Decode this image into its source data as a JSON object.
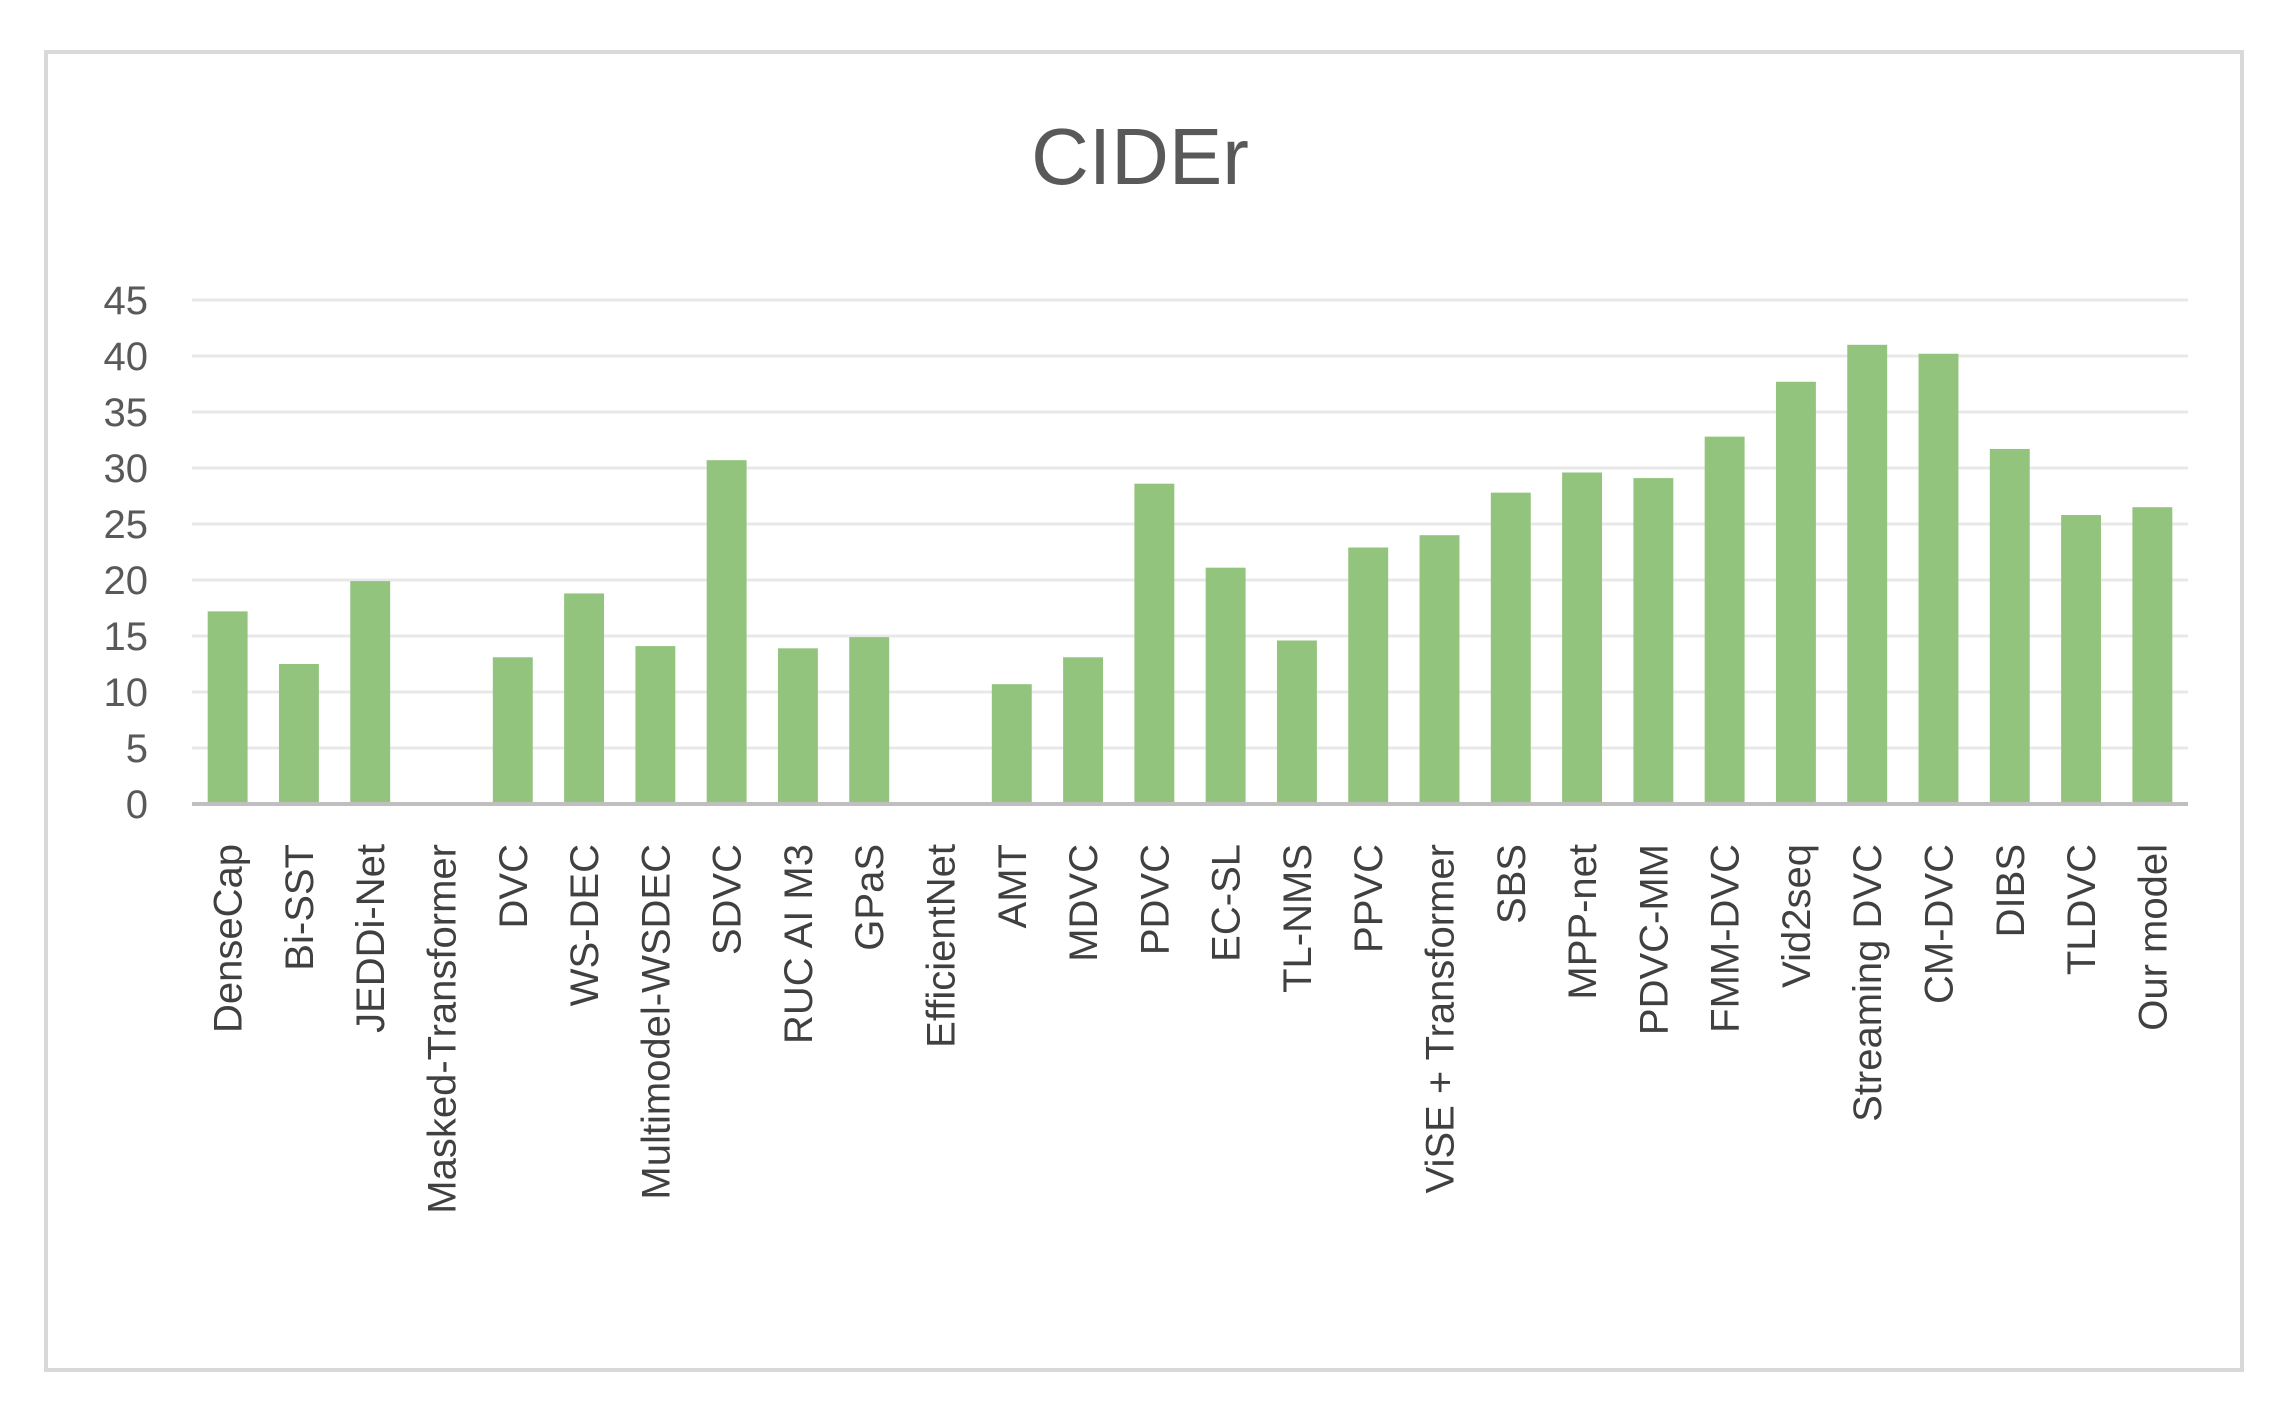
{
  "chart_data": {
    "type": "bar",
    "title": "CIDEr",
    "xlabel": "",
    "ylabel": "",
    "ylim": [
      0,
      45
    ],
    "yticks": [
      0,
      5,
      10,
      15,
      20,
      25,
      30,
      35,
      40,
      45
    ],
    "grid": true,
    "legend": "none",
    "categories": [
      "DenseCap",
      "Bi-SST",
      "JEDDi-Net",
      "Masked-Transformer",
      "DVC",
      "WS-DEC",
      "Multimodel-WSDEC",
      "SDVC",
      "RUC AI M3",
      "GPaS",
      "EfficientNet",
      "AMT",
      "MDVC",
      "PDVC",
      "EC-SL",
      "TL-NMS",
      "PPVC",
      "ViSE + Transformer",
      "SBS",
      "MPP-net",
      "PDVC-MM",
      "FMM-DVC",
      "Vid2seq",
      "Streaming DVC",
      "CM-DVC",
      "DIBS",
      "TLDVC",
      "Our model"
    ],
    "values": [
      17.2,
      12.5,
      19.9,
      0,
      13.1,
      18.8,
      14.1,
      30.7,
      13.9,
      14.9,
      0,
      10.7,
      13.1,
      28.6,
      21.1,
      14.6,
      22.9,
      24.0,
      27.8,
      29.6,
      29.1,
      32.8,
      37.7,
      41.0,
      40.2,
      31.7,
      25.8,
      26.5
    ],
    "colors": {
      "bar": "#93c47d",
      "grid": "#e8e8e8",
      "axis": "#bfbfbf"
    }
  }
}
